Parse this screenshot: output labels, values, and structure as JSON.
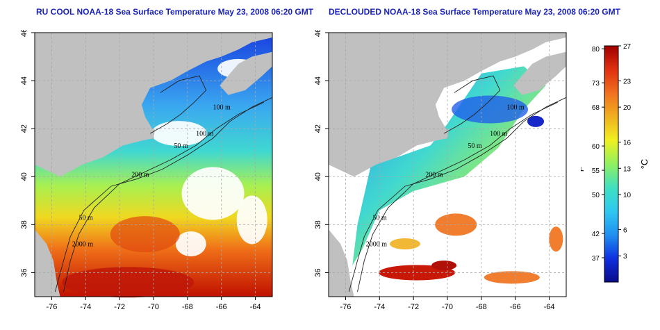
{
  "panels": [
    {
      "title": "RU COOL NOAA-18 Sea Surface Temperature May 23, 2008 06:20 GMT",
      "mode": "raw"
    },
    {
      "title": "DECLOUDED NOAA-18 Sea Surface Temperature May 23, 2008 06:20 GMT",
      "mode": "declouded"
    }
  ],
  "axes": {
    "lat_ticks": [
      "36",
      "38",
      "40",
      "42",
      "44",
      "46"
    ],
    "lat_values": [
      36,
      38,
      40,
      42,
      44,
      46
    ],
    "lon_ticks": [
      "-76",
      "-74",
      "-72",
      "-70",
      "-68",
      "-66",
      "-64"
    ],
    "lon_values": [
      -76,
      -74,
      -72,
      -70,
      -68,
      -66,
      -64
    ],
    "lon_range": [
      -77,
      -63
    ],
    "lat_range": [
      35,
      46
    ]
  },
  "contour_labels": [
    "100 m",
    "100 m",
    "50 m",
    "200 m",
    "50 m",
    "2000 m"
  ],
  "colorbar": {
    "fahrenheit_label": "°F",
    "celsius_label": "°C",
    "fahrenheit_ticks": [
      "80",
      "73",
      "68",
      "60",
      "55",
      "50",
      "42",
      "37"
    ],
    "fahrenheit_values": [
      80,
      73,
      68,
      60,
      55,
      50,
      42,
      37
    ],
    "celsius_ticks": [
      "27",
      "23",
      "20",
      "16",
      "13",
      "10",
      "6",
      "3"
    ],
    "celsius_values": [
      27,
      23,
      20,
      16,
      13,
      10,
      6,
      3
    ],
    "celsius_range": [
      0,
      27
    ],
    "colors": [
      "#0a0a8a",
      "#1030e0",
      "#2090f0",
      "#30c8f0",
      "#40e0c0",
      "#90f060",
      "#f0f020",
      "#f0b020",
      "#f07020",
      "#e03010",
      "#a00000"
    ]
  },
  "colors": {
    "title": "#1a22b8",
    "land": "#c0c0c0",
    "cloud": "#ffffff",
    "grid": "#a8a8a8",
    "contour": "#202020"
  }
}
